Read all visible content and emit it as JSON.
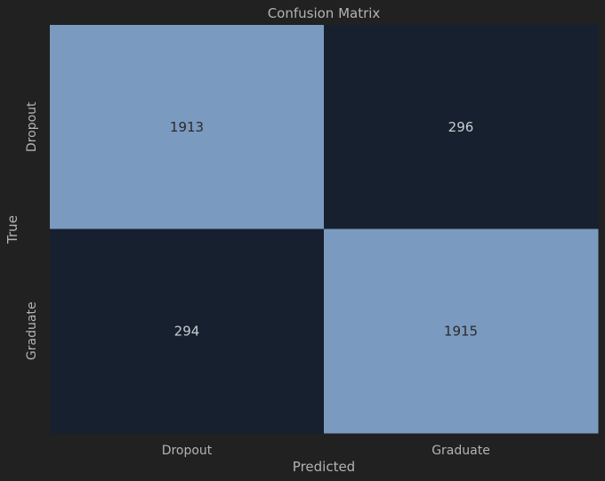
{
  "chart_data": {
    "type": "heatmap",
    "title": "Confusion Matrix",
    "xlabel": "Predicted",
    "ylabel": "True",
    "x_categories": [
      "Dropout",
      "Graduate"
    ],
    "y_categories": [
      "Dropout",
      "Graduate"
    ],
    "values": [
      [
        1913,
        296
      ],
      [
        294,
        1915
      ]
    ],
    "colors": {
      "background": "#212121",
      "low": "#16202e",
      "high": "#7b9abf",
      "text_on_low": "#c8ccd2",
      "text_on_high": "#2a2a2a",
      "axis_text": "#b3b3b3"
    }
  }
}
